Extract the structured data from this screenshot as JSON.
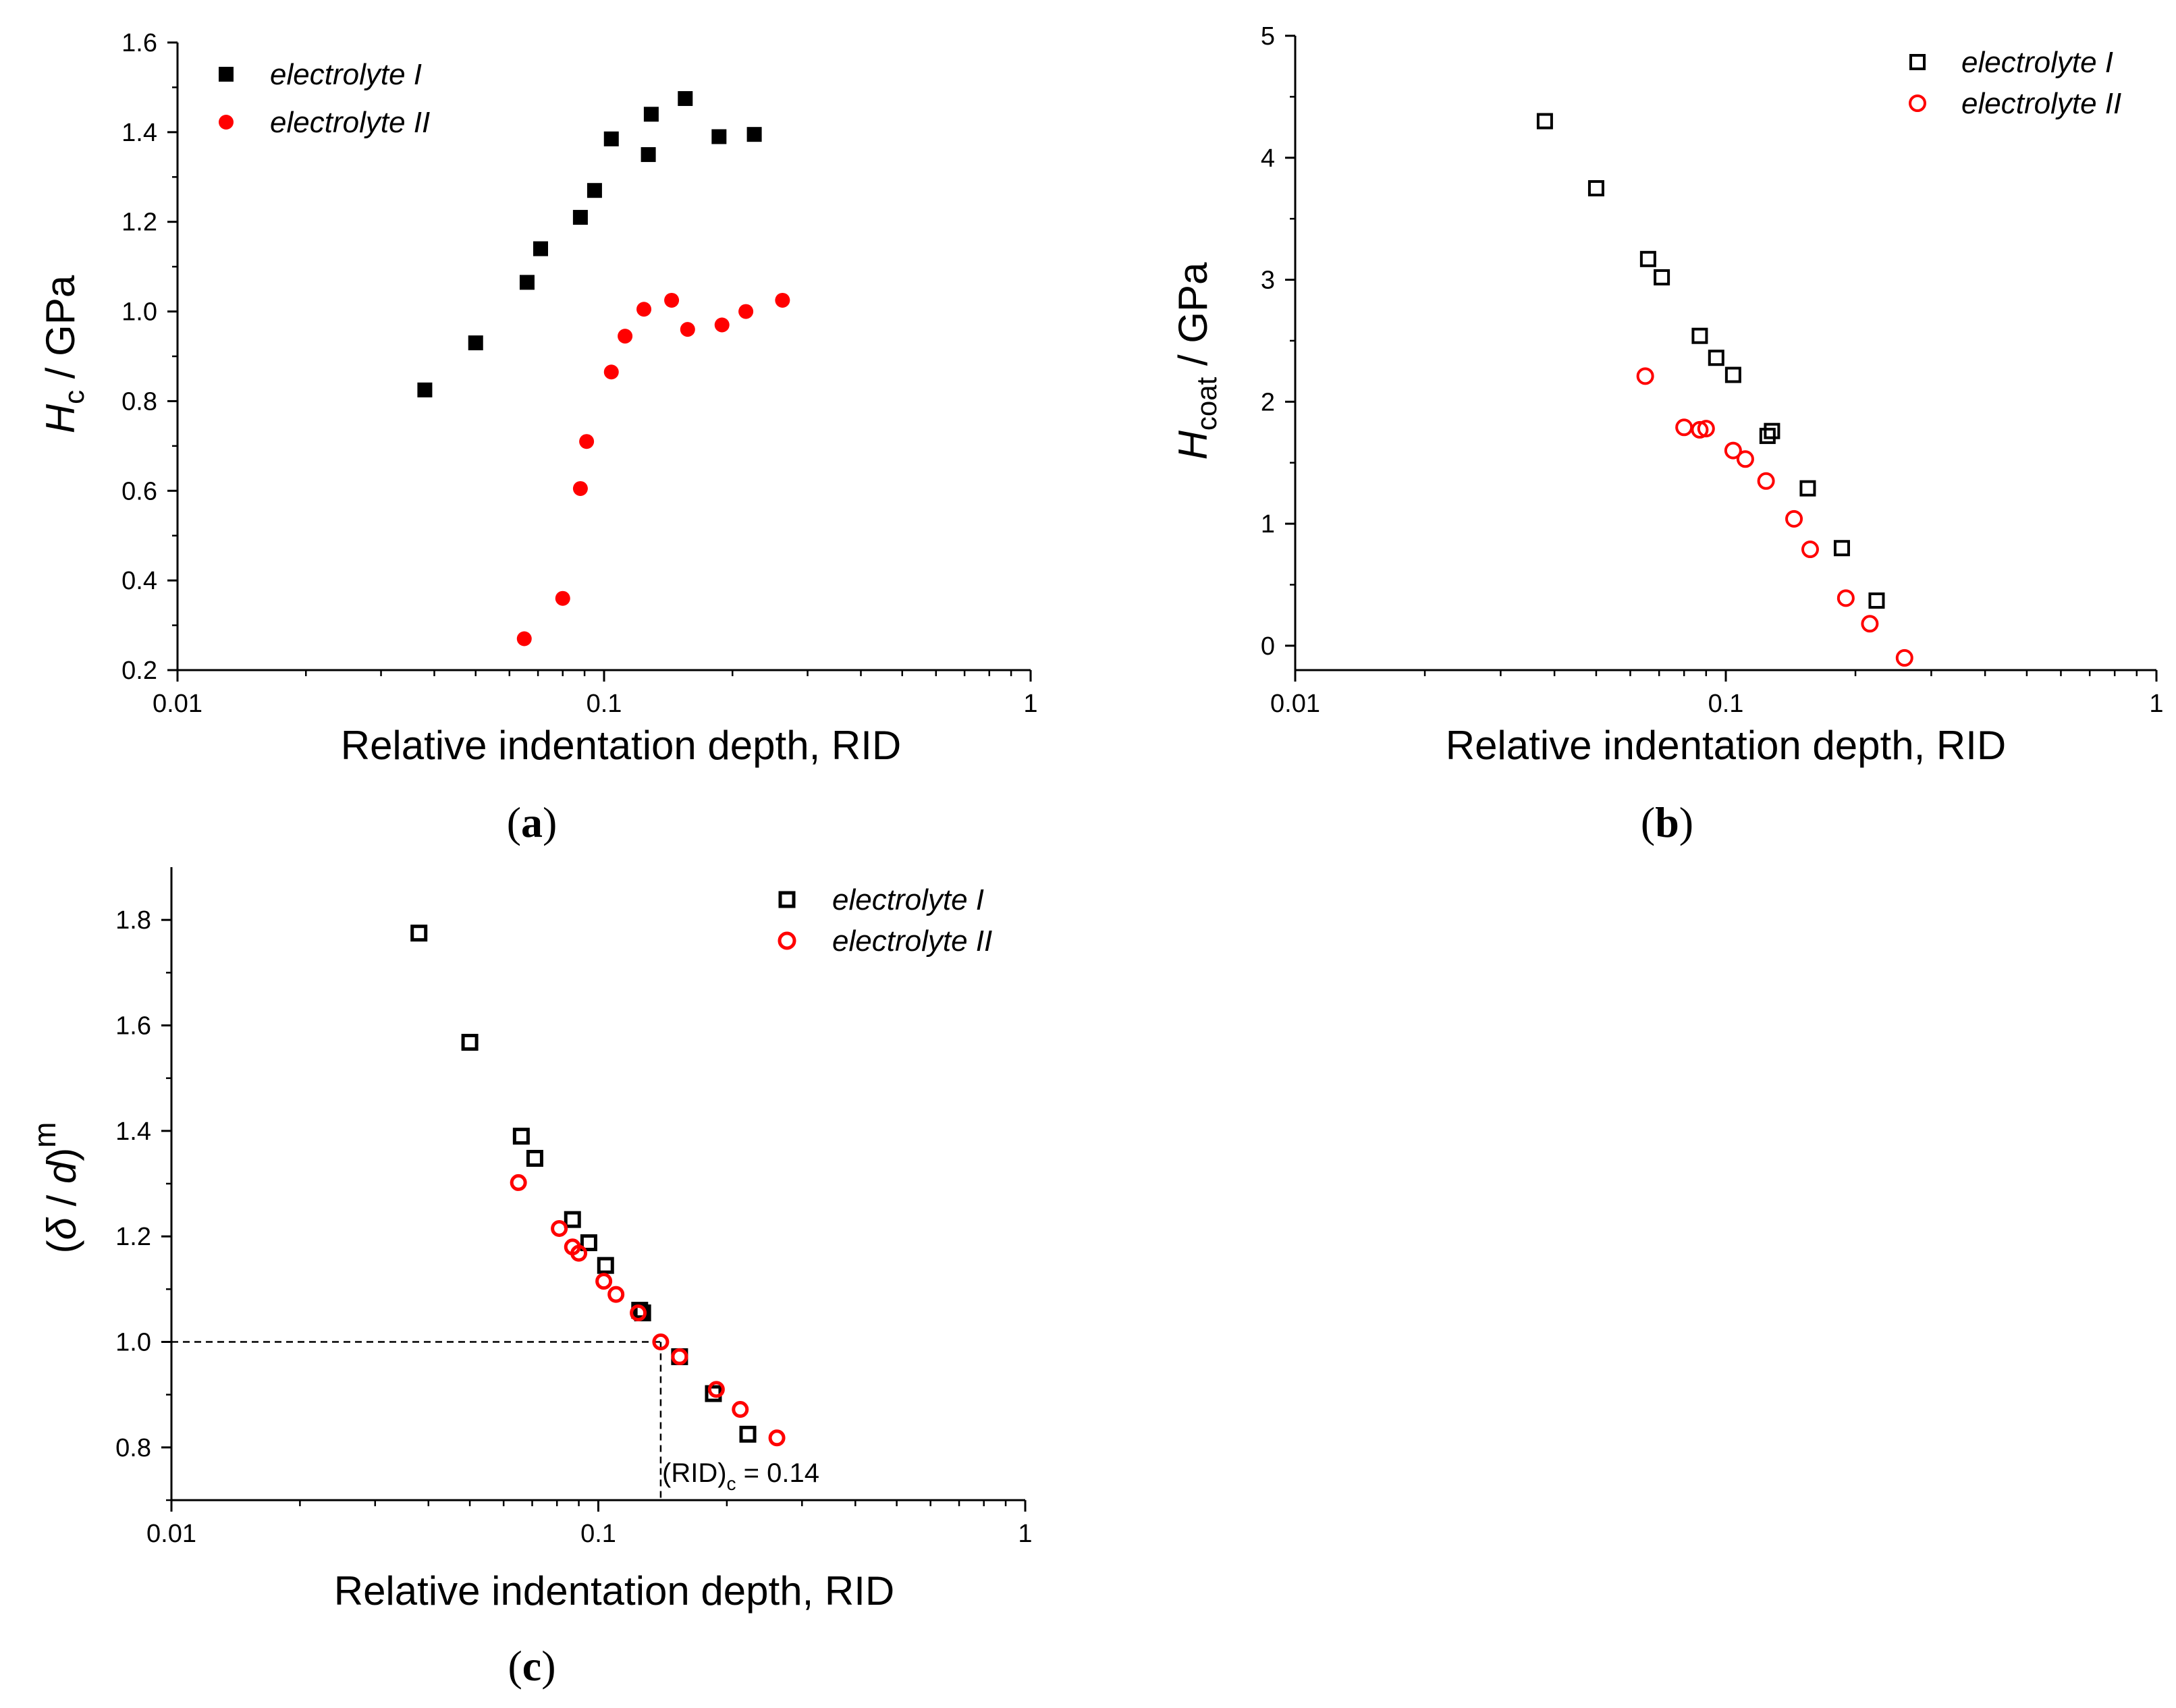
{
  "colors": {
    "series1": "#000000",
    "series2": "#ff0000",
    "axis": "#000000",
    "background": "#ffffff"
  },
  "chart_data": [
    {
      "id": "a",
      "type": "scatter",
      "panel_label_open": "(",
      "panel_label_letter": "a",
      "panel_label_close": ")",
      "xlabel": "Relative indentation depth, RID",
      "ylabel_sym": "H",
      "ylabel_sub": "c",
      "ylabel_rest": " / GPa",
      "xscale": "log",
      "xlim": [
        0.01,
        1
      ],
      "ylim": [
        0.2,
        1.6
      ],
      "x_tick_labels": [
        "0.01",
        "0.1",
        "1"
      ],
      "y_ticks": [
        0.2,
        0.4,
        0.6,
        0.8,
        1.0,
        1.2,
        1.4,
        1.6
      ],
      "y_tick_labels": [
        "0.2",
        "0.4",
        "0.6",
        "0.8",
        "1.0",
        "1.2",
        "1.4",
        "1.6"
      ],
      "legend_position": "top-left",
      "series": [
        {
          "name": "electrolyte I",
          "marker": "filled-square",
          "color": "#000000",
          "x": [
            0.038,
            0.05,
            0.066,
            0.071,
            0.088,
            0.095,
            0.104,
            0.127,
            0.129,
            0.155,
            0.186,
            0.225
          ],
          "y": [
            0.825,
            0.93,
            1.065,
            1.14,
            1.21,
            1.27,
            1.385,
            1.35,
            1.44,
            1.475,
            1.39,
            1.395
          ]
        },
        {
          "name": "electrolyte II",
          "marker": "filled-circle",
          "color": "#ff0000",
          "x": [
            0.065,
            0.08,
            0.088,
            0.091,
            0.104,
            0.112,
            0.124,
            0.144,
            0.157,
            0.189,
            0.215,
            0.262
          ],
          "y": [
            0.27,
            0.36,
            0.605,
            0.71,
            0.865,
            0.945,
            1.005,
            1.025,
            0.96,
            0.97,
            1.0,
            1.025
          ]
        }
      ]
    },
    {
      "id": "b",
      "type": "scatter",
      "panel_label_open": "(",
      "panel_label_letter": "b",
      "panel_label_close": ")",
      "xlabel": "Relative indentation depth, RID",
      "ylabel_sym": "H",
      "ylabel_sub": "coat",
      "ylabel_rest": " / GPa",
      "xscale": "log",
      "xlim": [
        0.01,
        1
      ],
      "ylim": [
        -0.2,
        5
      ],
      "x_tick_labels": [
        "0.01",
        "0.1",
        "1"
      ],
      "y_ticks": [
        0,
        1,
        2,
        3,
        4,
        5
      ],
      "y_tick_labels": [
        "0",
        "1",
        "2",
        "3",
        "4",
        "5"
      ],
      "legend_position": "top-right",
      "series": [
        {
          "name": "electrolyte I",
          "marker": "open-square",
          "color": "#000000",
          "x": [
            0.038,
            0.05,
            0.066,
            0.071,
            0.087,
            0.095,
            0.104,
            0.125,
            0.128,
            0.155,
            0.186,
            0.224
          ],
          "y": [
            4.3,
            3.75,
            3.17,
            3.02,
            2.54,
            2.36,
            2.22,
            1.72,
            1.76,
            1.29,
            0.8,
            0.37
          ]
        },
        {
          "name": "electrolyte II",
          "marker": "open-circle",
          "color": "#ff0000",
          "x": [
            0.065,
            0.08,
            0.087,
            0.09,
            0.104,
            0.111,
            0.124,
            0.144,
            0.157,
            0.19,
            0.216,
            0.26
          ],
          "y": [
            2.21,
            1.79,
            1.77,
            1.78,
            1.6,
            1.53,
            1.35,
            1.04,
            0.79,
            0.39,
            0.18,
            -0.1
          ]
        }
      ]
    },
    {
      "id": "c",
      "type": "scatter",
      "panel_label_open": "(",
      "panel_label_letter": "c",
      "panel_label_close": ")",
      "xlabel": "Relative indentation depth, RID",
      "ylabel_open": "(",
      "ylabel_delta": "δ",
      "ylabel_slash": " / ",
      "ylabel_d": "d",
      "ylabel_close": ")",
      "ylabel_sup": "m",
      "xscale": "log",
      "xlim": [
        0.01,
        1
      ],
      "ylim": [
        0.7,
        1.9
      ],
      "x_tick_labels": [
        "0.01",
        "0.1",
        "1"
      ],
      "y_ticks": [
        0.8,
        1.0,
        1.2,
        1.4,
        1.6,
        1.8
      ],
      "y_tick_labels": [
        "0.8",
        "1.0",
        "1.2",
        "1.4",
        "1.6",
        "1.8"
      ],
      "legend_position": "top-right",
      "annotation": {
        "text_main": "(RID)",
        "text_sub": "c",
        "text_value": " = 0.14",
        "x": 0.14,
        "y": 1.0
      },
      "series": [
        {
          "name": "electrolyte I",
          "marker": "open-square",
          "color": "#000000",
          "x": [
            0.038,
            0.05,
            0.066,
            0.071,
            0.087,
            0.095,
            0.104,
            0.125,
            0.127,
            0.155,
            0.186,
            0.224
          ],
          "y": [
            1.775,
            1.568,
            1.39,
            1.348,
            1.232,
            1.188,
            1.145,
            1.06,
            1.055,
            0.972,
            0.902,
            0.825
          ]
        },
        {
          "name": "electrolyte II",
          "marker": "open-circle",
          "color": "#ff0000",
          "x": [
            0.065,
            0.081,
            0.087,
            0.09,
            0.103,
            0.11,
            0.124,
            0.14,
            0.155,
            0.189,
            0.215,
            0.262
          ],
          "y": [
            1.302,
            1.215,
            1.18,
            1.168,
            1.115,
            1.09,
            1.055,
            1.0,
            0.972,
            0.91,
            0.872,
            0.818
          ]
        }
      ]
    }
  ]
}
